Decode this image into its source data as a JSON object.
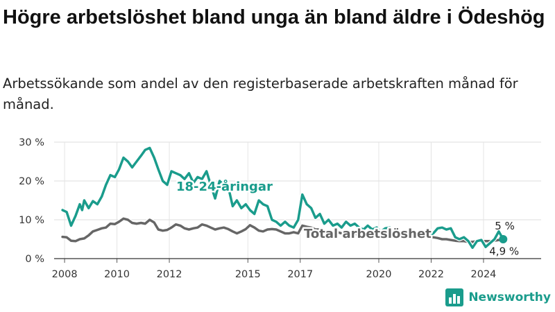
{
  "header": {
    "title": "Högre arbetslöshet bland unga än bland äldre i Ödeshög",
    "subtitle": "Arbetssökande som andel av den registerbaserade arbetskraften månad för månad."
  },
  "brand": {
    "name": "Newsworthy",
    "icon": "bar-chart-logo-icon",
    "color": "#1a9c8c"
  },
  "chart_data": {
    "type": "line",
    "x_ticks": [
      "2008",
      "2010",
      "2012",
      "2015",
      "2017",
      "2020",
      "2022",
      "2024"
    ],
    "x_tick_years": [
      2008,
      2010,
      2012,
      2015,
      2017,
      2020,
      2022,
      2024
    ],
    "xlim": [
      2007.6,
      2026.2
    ],
    "y_ticks": [
      "0 %",
      "10 %",
      "20 %",
      "30 %"
    ],
    "y_tick_values": [
      0,
      10,
      20,
      30
    ],
    "ylim": [
      0,
      30
    ],
    "grid": true,
    "series": [
      {
        "name": "18-24-åringar",
        "color": "#1a9c8c",
        "end_label": "5 %",
        "points": [
          [
            2007.92,
            12.5
          ],
          [
            2008.08,
            12.0
          ],
          [
            2008.25,
            8.5
          ],
          [
            2008.42,
            11.0
          ],
          [
            2008.58,
            14.0
          ],
          [
            2008.67,
            12.5
          ],
          [
            2008.75,
            15.0
          ],
          [
            2008.92,
            13.0
          ],
          [
            2009.08,
            14.8
          ],
          [
            2009.25,
            14.0
          ],
          [
            2009.42,
            16.0
          ],
          [
            2009.58,
            19.0
          ],
          [
            2009.75,
            21.5
          ],
          [
            2009.92,
            21.0
          ],
          [
            2010.08,
            23.0
          ],
          [
            2010.25,
            26.0
          ],
          [
            2010.42,
            25.0
          ],
          [
            2010.58,
            23.5
          ],
          [
            2010.75,
            25.0
          ],
          [
            2010.92,
            26.5
          ],
          [
            2011.08,
            28.0
          ],
          [
            2011.25,
            28.5
          ],
          [
            2011.42,
            26.0
          ],
          [
            2011.58,
            23.0
          ],
          [
            2011.75,
            20.0
          ],
          [
            2011.92,
            19.0
          ],
          [
            2012.08,
            22.5
          ],
          [
            2012.25,
            22.0
          ],
          [
            2012.42,
            21.5
          ],
          [
            2012.58,
            20.5
          ],
          [
            2012.75,
            22.0
          ],
          [
            2012.92,
            19.5
          ],
          [
            2013.08,
            21.0
          ],
          [
            2013.25,
            20.5
          ],
          [
            2013.42,
            22.5
          ],
          [
            2013.58,
            19.0
          ],
          [
            2013.75,
            15.5
          ],
          [
            2013.92,
            20.0
          ],
          [
            2014.08,
            19.0
          ],
          [
            2014.25,
            18.5
          ],
          [
            2014.42,
            13.5
          ],
          [
            2014.58,
            15.0
          ],
          [
            2014.75,
            13.0
          ],
          [
            2014.92,
            14.0
          ],
          [
            2015.08,
            12.5
          ],
          [
            2015.25,
            11.5
          ],
          [
            2015.42,
            15.0
          ],
          [
            2015.58,
            14.0
          ],
          [
            2015.75,
            13.5
          ],
          [
            2015.92,
            10.0
          ],
          [
            2016.08,
            9.5
          ],
          [
            2016.25,
            8.5
          ],
          [
            2016.42,
            9.5
          ],
          [
            2016.58,
            8.5
          ],
          [
            2016.75,
            8.0
          ],
          [
            2016.92,
            10.0
          ],
          [
            2017.08,
            16.5
          ],
          [
            2017.25,
            14.0
          ],
          [
            2017.42,
            13.0
          ],
          [
            2017.58,
            10.5
          ],
          [
            2017.75,
            11.5
          ],
          [
            2017.92,
            9.0
          ],
          [
            2018.08,
            10.0
          ],
          [
            2018.25,
            8.5
          ],
          [
            2018.42,
            9.0
          ],
          [
            2018.58,
            8.0
          ],
          [
            2018.75,
            9.5
          ],
          [
            2018.92,
            8.5
          ],
          [
            2019.08,
            9.0
          ],
          [
            2019.25,
            8.0
          ],
          [
            2019.42,
            7.5
          ],
          [
            2019.58,
            8.5
          ],
          [
            2019.75,
            7.5
          ],
          [
            2019.92,
            8.0
          ],
          [
            2020.08,
            7.0
          ],
          [
            2020.25,
            7.8
          ],
          [
            2020.42,
            8.0
          ],
          [
            2020.58,
            7.0
          ],
          [
            2020.75,
            6.5
          ],
          [
            2020.92,
            6.8
          ],
          [
            2021.08,
            6.5
          ],
          [
            2021.25,
            7.5
          ],
          [
            2021.42,
            6.5
          ],
          [
            2021.58,
            6.0
          ],
          [
            2021.75,
            6.2
          ],
          [
            2021.92,
            6.0
          ],
          [
            2022.08,
            6.5
          ],
          [
            2022.25,
            7.8
          ],
          [
            2022.42,
            8.0
          ],
          [
            2022.58,
            7.5
          ],
          [
            2022.75,
            7.8
          ],
          [
            2022.92,
            5.5
          ],
          [
            2023.08,
            5.0
          ],
          [
            2023.25,
            5.5
          ],
          [
            2023.42,
            4.5
          ],
          [
            2023.58,
            2.8
          ],
          [
            2023.75,
            4.5
          ],
          [
            2023.92,
            4.8
          ],
          [
            2024.08,
            3.0
          ],
          [
            2024.25,
            4.0
          ],
          [
            2024.42,
            5.0
          ],
          [
            2024.58,
            7.0
          ],
          [
            2024.75,
            5.0
          ]
        ]
      },
      {
        "name": "Total arbetslöshet",
        "color": "#666666",
        "end_label": "4,9 %",
        "points": [
          [
            2007.92,
            5.6
          ],
          [
            2008.08,
            5.5
          ],
          [
            2008.25,
            4.6
          ],
          [
            2008.42,
            4.5
          ],
          [
            2008.58,
            5.0
          ],
          [
            2008.75,
            5.2
          ],
          [
            2008.92,
            6.0
          ],
          [
            2009.08,
            7.0
          ],
          [
            2009.25,
            7.4
          ],
          [
            2009.42,
            7.8
          ],
          [
            2009.58,
            8.0
          ],
          [
            2009.75,
            9.0
          ],
          [
            2009.92,
            8.9
          ],
          [
            2010.08,
            9.5
          ],
          [
            2010.25,
            10.3
          ],
          [
            2010.42,
            10.0
          ],
          [
            2010.58,
            9.2
          ],
          [
            2010.75,
            9.0
          ],
          [
            2010.92,
            9.2
          ],
          [
            2011.08,
            9.0
          ],
          [
            2011.25,
            10.0
          ],
          [
            2011.42,
            9.3
          ],
          [
            2011.58,
            7.5
          ],
          [
            2011.75,
            7.2
          ],
          [
            2011.92,
            7.4
          ],
          [
            2012.08,
            8.0
          ],
          [
            2012.25,
            8.8
          ],
          [
            2012.42,
            8.5
          ],
          [
            2012.58,
            7.8
          ],
          [
            2012.75,
            7.5
          ],
          [
            2012.92,
            7.8
          ],
          [
            2013.08,
            8.0
          ],
          [
            2013.25,
            8.8
          ],
          [
            2013.42,
            8.5
          ],
          [
            2013.58,
            8.0
          ],
          [
            2013.75,
            7.5
          ],
          [
            2013.92,
            7.8
          ],
          [
            2014.08,
            8.0
          ],
          [
            2014.25,
            7.6
          ],
          [
            2014.42,
            7.0
          ],
          [
            2014.58,
            6.5
          ],
          [
            2014.75,
            7.0
          ],
          [
            2014.92,
            7.6
          ],
          [
            2015.08,
            8.6
          ],
          [
            2015.25,
            8.0
          ],
          [
            2015.42,
            7.2
          ],
          [
            2015.58,
            7.0
          ],
          [
            2015.75,
            7.5
          ],
          [
            2015.92,
            7.6
          ],
          [
            2016.08,
            7.5
          ],
          [
            2016.25,
            7.0
          ],
          [
            2016.42,
            6.5
          ],
          [
            2016.58,
            6.5
          ],
          [
            2016.75,
            6.8
          ],
          [
            2016.92,
            6.5
          ],
          [
            2017.08,
            8.5
          ],
          [
            2017.25,
            8.2
          ],
          [
            2017.42,
            8.0
          ],
          [
            2017.58,
            7.5
          ],
          [
            2017.75,
            7.5
          ],
          [
            2017.92,
            7.0
          ],
          [
            2018.08,
            7.2
          ],
          [
            2018.25,
            7.0
          ],
          [
            2018.42,
            6.8
          ],
          [
            2018.58,
            6.5
          ],
          [
            2018.75,
            6.5
          ],
          [
            2018.92,
            6.2
          ],
          [
            2019.08,
            6.5
          ],
          [
            2019.25,
            6.0
          ],
          [
            2019.42,
            6.0
          ],
          [
            2019.58,
            6.2
          ],
          [
            2019.75,
            6.0
          ],
          [
            2019.92,
            6.0
          ],
          [
            2020.08,
            6.2
          ],
          [
            2020.25,
            6.5
          ],
          [
            2020.42,
            6.2
          ],
          [
            2020.58,
            6.0
          ],
          [
            2020.75,
            6.0
          ],
          [
            2020.92,
            5.8
          ],
          [
            2021.08,
            5.8
          ],
          [
            2021.25,
            5.5
          ],
          [
            2021.42,
            5.5
          ],
          [
            2021.58,
            5.5
          ],
          [
            2021.75,
            5.5
          ],
          [
            2021.92,
            5.5
          ],
          [
            2022.08,
            5.5
          ],
          [
            2022.25,
            5.3
          ],
          [
            2022.42,
            5.0
          ],
          [
            2022.58,
            5.0
          ],
          [
            2022.75,
            4.8
          ],
          [
            2022.92,
            4.6
          ],
          [
            2023.08,
            4.5
          ],
          [
            2023.25,
            4.5
          ],
          [
            2023.42,
            4.3
          ],
          [
            2023.58,
            4.3
          ],
          [
            2023.75,
            4.5
          ],
          [
            2023.92,
            4.5
          ],
          [
            2024.08,
            4.5
          ],
          [
            2024.25,
            4.5
          ],
          [
            2024.42,
            4.6
          ],
          [
            2024.58,
            4.8
          ],
          [
            2024.75,
            4.9
          ]
        ]
      }
    ]
  }
}
